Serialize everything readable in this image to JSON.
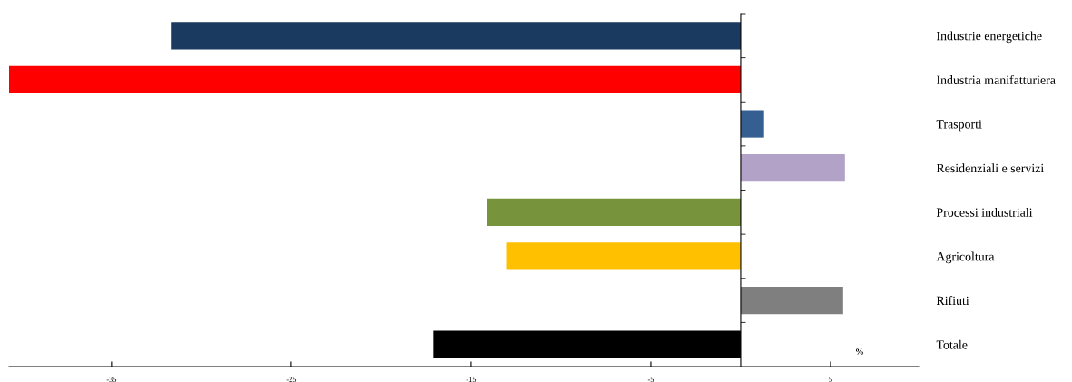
{
  "chart_data": {
    "type": "bar",
    "orientation": "horizontal",
    "categories": [
      "Industrie energetiche",
      "Industria manifatturiera",
      "Trasporti",
      "Residenziali e servizi",
      "Processi industriali",
      "Agricoltura",
      "Rifiuti",
      "Totale"
    ],
    "values": [
      -31.7,
      -40.7,
      1.3,
      5.8,
      -14.1,
      -13.0,
      5.7,
      -17.1
    ],
    "colors": [
      "#1b3a5f",
      "#ff0000",
      "#365f91",
      "#b2a2c7",
      "#77933c",
      "#ffc000",
      "#7f7f7f",
      "#000000"
    ],
    "xlim": [
      -40.7,
      9.9
    ],
    "xticks": [
      -35,
      -25,
      -15,
      -5,
      5
    ],
    "annotations": [
      "%"
    ],
    "grid": false
  }
}
